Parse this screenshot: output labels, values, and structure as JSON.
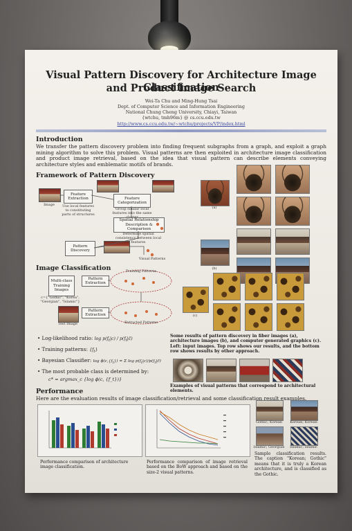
{
  "poster": {
    "title_line1": "Visual Pattern Discovery for Architecture Image Classification",
    "title_line2": "and Product Image Search",
    "authors": "Wei-Ta Chu and Ming-Hung Tsai",
    "dept": "Dept. of Computer Science and Information Engineering",
    "university": "National Chung Cheng University, Chiayi, Taiwan",
    "email": "{wtchu, tmh96m} @ cs.ccu.edu.tw",
    "url": "http://www.cs.ccu.edu.tw/~wtchu/projects/VP/index.html",
    "intro": {
      "heading": "Introduction",
      "text": "We transfer the pattern discovery problem into finding frequent subgraphs from a graph, and exploit a graph mining algorithm to solve this problem. Visual patterns are then exploited in architecture image classification and product image retrieval, based on the idea that visual pattern can describe elements conveying architecture styles and emblematic motifs of brands."
    },
    "framework": {
      "heading": "Framework of Pattern Discovery",
      "image_label": "Image",
      "feature_extraction": "Feature Extraction",
      "feature_extraction_note": "Use local features to constituting parts of structures",
      "feature_categorization": "Feature Categorization",
      "feature_categorization_note": "Group similar local features into the same cluster",
      "spatial": "Spatial Relationship Description & Comparison",
      "spatial_note": "Determine spatial consistency between local features",
      "pattern_discovery": "Pattern Discovery",
      "visual_patterns": "Visual Patterns"
    },
    "classification": {
      "heading": "Image Classification",
      "multiclass": "Multi-class Training Images",
      "classes": "c={\"Gothic\", \"Korea\", \"Georgian\", \"Islamic\"}",
      "pattern_extraction": "Pattern Extraction",
      "training_patterns": "Training Patterns",
      "extracted_patterns": "Extracted Patterns",
      "test_image": "Test Image",
      "b1": "Log-likelihood ratio:",
      "b2": "Training patterns:",
      "b3": "Bayesian Classifier:",
      "b4": "The most probable class is determined by:",
      "argmax": "c* = argmax_c {log ϕ(c, {f_t})}"
    },
    "results_caption": "Some results of pattern discovery in fiber images (a), architecture images (b), and computer generated graphics (c). Left: input images. Top row shows our results, and the bottom row shows results by other approach.",
    "examples_caption": "Examples of visual patterns that correspond to architectural elements.",
    "labels": {
      "a": "(a)",
      "b": "(b)",
      "c": "(c)"
    },
    "performance": {
      "heading": "Performance",
      "text": "Here are the evaluation results of image classification/retrieval and some classification result examples.",
      "cap1": "Performance comparison of architecture image classification.",
      "cap2": "Performance comparison of image retrieval based on the BoW approach and based on the size-2 visual patterns.",
      "cap3": "Sample classification results. The caption \"Korean; Gothic\" means that it is truly a Korean architecture, and is classified as the Gothic.",
      "sample_labels": [
        "Gothic; Korean",
        "Korean; Korean",
        "Islamic; Georgian",
        "Islamic; Islamic"
      ]
    }
  },
  "colors": {
    "accent_rule": "#8f98c0",
    "link": "#3a4aa0",
    "bar_green": "#2e7d32",
    "bar_blue": "#2a4d8f",
    "bar_red": "#b03a2e"
  }
}
